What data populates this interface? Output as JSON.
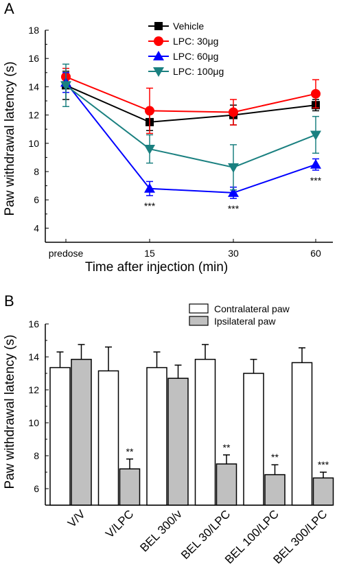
{
  "chart_data": [
    {
      "type": "line",
      "panel_label": "A",
      "xlabel": "Time after injection (min)",
      "ylabel": "Paw withdrawal latency (s)",
      "ylim": [
        3,
        18
      ],
      "yticks": [
        4,
        6,
        8,
        10,
        12,
        14,
        16,
        18
      ],
      "categories": [
        "predose",
        "15",
        "30",
        "60"
      ],
      "legend_position": "top-right",
      "series": [
        {
          "name": "Vehicle",
          "color": "#000000",
          "marker": "square",
          "values": [
            14.1,
            11.5,
            12.0,
            12.7
          ],
          "errors": [
            1.0,
            0.6,
            0.7,
            0.4
          ]
        },
        {
          "name": "LPC: 30μg",
          "color": "#ff0000",
          "marker": "circle",
          "values": [
            14.7,
            12.3,
            12.2,
            13.5
          ],
          "errors": [
            0.6,
            1.6,
            0.9,
            1.0
          ]
        },
        {
          "name": "LPC: 60μg",
          "color": "#0000ff",
          "marker": "triangle-up",
          "values": [
            14.3,
            6.8,
            6.5,
            8.5
          ],
          "errors": [
            0.7,
            0.5,
            0.4,
            0.4
          ]
        },
        {
          "name": "LPC: 100μg",
          "color": "#1a8080",
          "marker": "triangle-down",
          "values": [
            14.1,
            9.6,
            8.3,
            10.6
          ],
          "errors": [
            1.5,
            1.0,
            1.6,
            1.3
          ]
        }
      ],
      "annotations": [
        {
          "x": "15",
          "text": "***"
        },
        {
          "x": "30",
          "text": "***"
        },
        {
          "x": "60",
          "text": "***"
        }
      ]
    },
    {
      "type": "bar",
      "panel_label": "B",
      "ylabel": "Paw withdrawal latency (s)",
      "ylim": [
        5,
        16
      ],
      "yticks": [
        6,
        8,
        10,
        12,
        14,
        16
      ],
      "categories": [
        "V/V",
        "V/LPC",
        "BEL 300/v",
        "BEL 30/LPC",
        "BEL 100/LPC",
        "BEL 300/LPC"
      ],
      "legend_position": "top-right",
      "series": [
        {
          "name": "Contralateral paw",
          "color": "#ffffff",
          "values": [
            13.35,
            13.15,
            13.35,
            13.85,
            13.0,
            13.65
          ],
          "errors": [
            0.95,
            1.45,
            0.95,
            0.9,
            0.85,
            0.9
          ]
        },
        {
          "name": "Ipsilateral paw",
          "color": "#c0c0c0",
          "values": [
            13.85,
            7.2,
            12.7,
            7.5,
            6.85,
            6.65
          ],
          "errors": [
            0.9,
            0.6,
            0.8,
            0.55,
            0.6,
            0.35
          ]
        }
      ],
      "annotations": [
        {
          "category": "V/LPC",
          "text": "**"
        },
        {
          "category": "BEL 30/LPC",
          "text": "**"
        },
        {
          "category": "BEL 100/LPC",
          "text": "**"
        },
        {
          "category": "BEL 300/LPC",
          "text": "***"
        }
      ]
    }
  ]
}
